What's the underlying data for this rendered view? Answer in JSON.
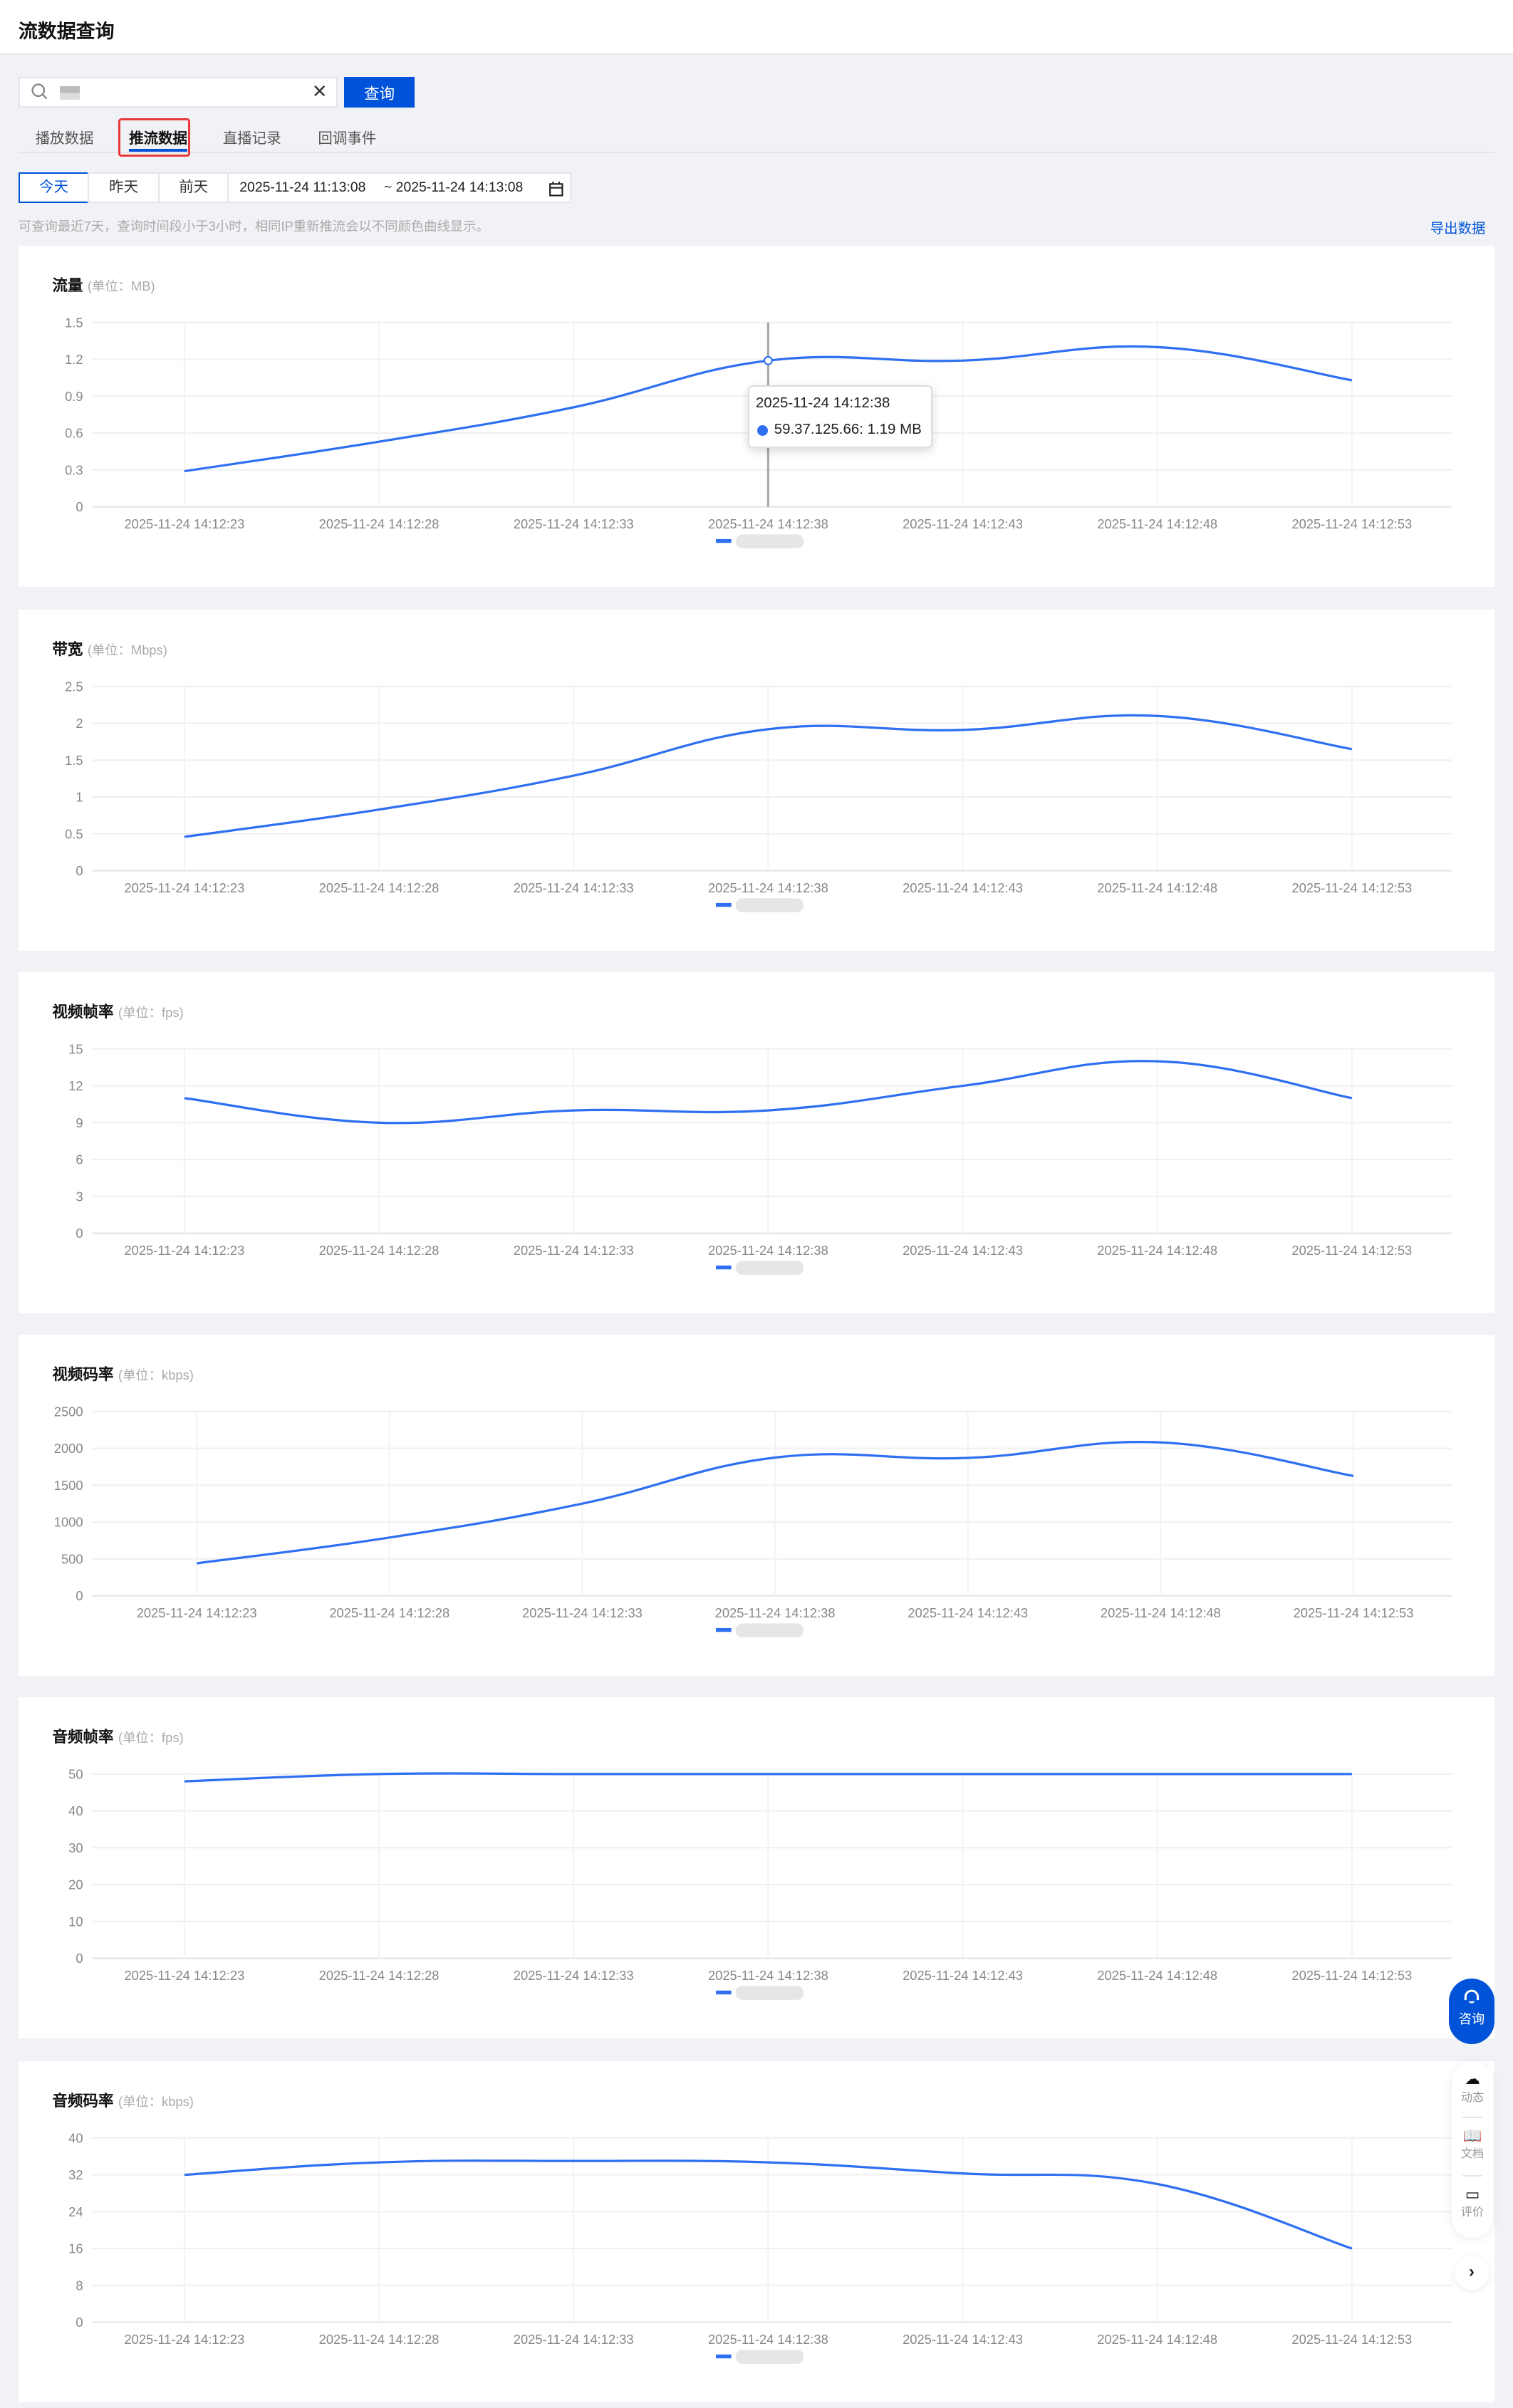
{
  "header": {
    "title": "流数据查询"
  },
  "search": {
    "placeholder": "",
    "button": "查询",
    "clear": "✕"
  },
  "tabs": [
    {
      "label": "播放数据",
      "active": false
    },
    {
      "label": "推流数据",
      "active": true
    },
    {
      "label": "直播记录",
      "active": false
    },
    {
      "label": "回调事件",
      "active": false
    }
  ],
  "dates": {
    "today": "今天",
    "yesterday": "昨天",
    "day_before": "前天",
    "start": "2025-11-24 11:13:08",
    "end": "~ 2025-11-24 14:13:08"
  },
  "hint": "可查询最近7天，查询时间段小于3小时，相同IP重新推流会以不同颜色曲线显示。",
  "export": "导出数据",
  "colors": {
    "accent": "#0052d9",
    "line": "#2f6ff2",
    "highlight": "#e83838"
  },
  "tooltip": {
    "time": "2025-11-24 14:12:38",
    "value": "59.37.125.66: 1.19 MB"
  },
  "chart_data": [
    {
      "type": "line",
      "title": "流量",
      "unit": "(单位：MB)",
      "ylim": [
        0,
        1.5
      ],
      "yticks": [
        "0",
        "0.3",
        "0.6",
        "0.9",
        "1.2",
        "1.5"
      ],
      "x": [
        "2025-11-24 14:12:23",
        "2025-11-24 14:12:28",
        "2025-11-24 14:12:33",
        "2025-11-24 14:12:38",
        "2025-11-24 14:12:43",
        "2025-11-24 14:12:48",
        "2025-11-24 14:12:53"
      ],
      "series": [
        {
          "name": "59.37.125.66",
          "values": [
            0.29,
            0.53,
            0.81,
            1.19,
            1.19,
            1.3,
            1.03
          ]
        }
      ]
    },
    {
      "type": "line",
      "title": "带宽",
      "unit": "(单位：Mbps)",
      "ylim": [
        0,
        2.5
      ],
      "yticks": [
        "0",
        "0.5",
        "1",
        "1.5",
        "2",
        "2.5"
      ],
      "x": [
        "2025-11-24 14:12:23",
        "2025-11-24 14:12:28",
        "2025-11-24 14:12:33",
        "2025-11-24 14:12:38",
        "2025-11-24 14:12:43",
        "2025-11-24 14:12:48",
        "2025-11-24 14:12:53"
      ],
      "series": [
        {
          "name": "59.37.125.66",
          "values": [
            0.46,
            0.83,
            1.29,
            1.92,
            1.91,
            2.1,
            1.65
          ]
        }
      ]
    },
    {
      "type": "line",
      "title": "视频帧率",
      "unit": "(单位：fps)",
      "ylim": [
        0,
        15
      ],
      "yticks": [
        "0",
        "3",
        "6",
        "9",
        "12",
        "15"
      ],
      "x": [
        "2025-11-24 14:12:23",
        "2025-11-24 14:12:28",
        "2025-11-24 14:12:33",
        "2025-11-24 14:12:38",
        "2025-11-24 14:12:43",
        "2025-11-24 14:12:48",
        "2025-11-24 14:12:53"
      ],
      "series": [
        {
          "name": "59.37.125.66",
          "values": [
            11,
            9,
            10,
            10,
            12,
            14,
            11
          ]
        }
      ]
    },
    {
      "type": "line",
      "title": "视频码率",
      "unit": "(单位：kbps)",
      "ylim": [
        0,
        2500
      ],
      "yticks": [
        "0",
        "500",
        "1000",
        "1500",
        "2000",
        "2500"
      ],
      "x": [
        "2025-11-24 14:12:23",
        "2025-11-24 14:12:28",
        "2025-11-24 14:12:33",
        "2025-11-24 14:12:38",
        "2025-11-24 14:12:43",
        "2025-11-24 14:12:48",
        "2025-11-24 14:12:53"
      ],
      "series": [
        {
          "name": "59.37.125.66",
          "values": [
            440,
            790,
            1250,
            1875,
            1870,
            2080,
            1625
          ]
        }
      ]
    },
    {
      "type": "line",
      "title": "音频帧率",
      "unit": "(单位：fps)",
      "ylim": [
        0,
        50
      ],
      "yticks": [
        "0",
        "10",
        "20",
        "30",
        "40",
        "50"
      ],
      "x": [
        "2025-11-24 14:12:23",
        "2025-11-24 14:12:28",
        "2025-11-24 14:12:33",
        "2025-11-24 14:12:38",
        "2025-11-24 14:12:43",
        "2025-11-24 14:12:48",
        "2025-11-24 14:12:53"
      ],
      "series": [
        {
          "name": "59.37.125.66",
          "values": [
            48,
            50,
            50,
            50,
            50,
            50,
            50
          ]
        }
      ]
    },
    {
      "type": "line",
      "title": "音频码率",
      "unit": "(单位：kbps)",
      "ylim": [
        0,
        40
      ],
      "yticks": [
        "0",
        "8",
        "16",
        "24",
        "32",
        "40"
      ],
      "x": [
        "2025-11-24 14:12:23",
        "2025-11-24 14:12:28",
        "2025-11-24 14:12:33",
        "2025-11-24 14:12:38",
        "2025-11-24 14:12:43",
        "2025-11-24 14:12:48",
        "2025-11-24 14:12:53"
      ],
      "series": [
        {
          "name": "59.37.125.66",
          "values": [
            32,
            34.7,
            35,
            34.7,
            32.3,
            30,
            16
          ]
        }
      ]
    }
  ],
  "float": {
    "consult": "咨询",
    "news": "动态",
    "docs": "文档",
    "review": "评价"
  }
}
